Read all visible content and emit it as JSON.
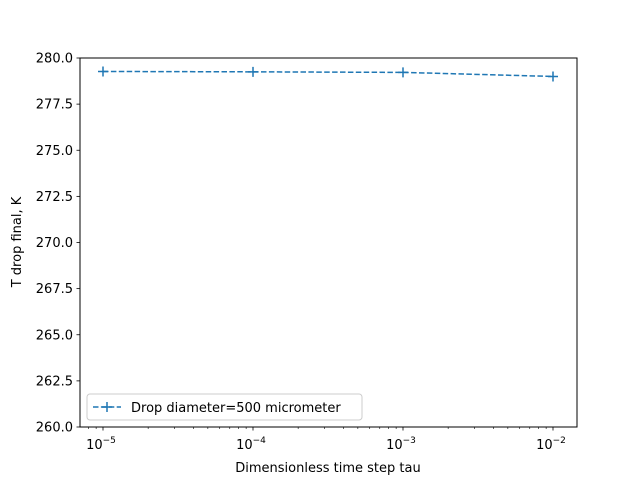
{
  "chart_data": {
    "type": "line",
    "title": "",
    "xlabel": "Dimensionless time step tau",
    "ylabel": "T drop final, K",
    "xscale": "log",
    "x": [
      1e-05,
      0.0001,
      0.001,
      0.01
    ],
    "x_tick_labels": [
      {
        "base": "10",
        "exp": "−5"
      },
      {
        "base": "10",
        "exp": "−4"
      },
      {
        "base": "10",
        "exp": "−3"
      },
      {
        "base": "10",
        "exp": "−2"
      }
    ],
    "y_ticks": [
      "260.0",
      "262.5",
      "265.0",
      "267.5",
      "270.0",
      "272.5",
      "275.0",
      "277.5",
      "280.0"
    ],
    "ylim": [
      260,
      280
    ],
    "series": [
      {
        "name": "Drop diameter=500 micrometer",
        "values": [
          279.27,
          279.25,
          279.22,
          279.0
        ],
        "color": "#1f77b4",
        "linestyle": "dashed",
        "marker": "+"
      }
    ],
    "legend_position": "lower left",
    "grid": false
  }
}
